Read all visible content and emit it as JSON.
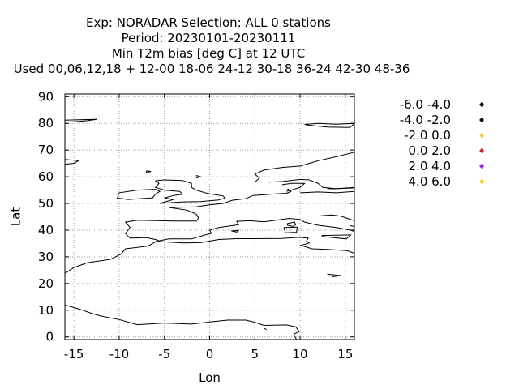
{
  "chart_data": {
    "type": "scatter",
    "title_lines": [
      "Exp: NORADAR   Selection: ALL      0 stations",
      "Period: 20230101-20230111",
      "Min T2m bias [deg C] at  12 UTC",
      "Used  00,06,12,18  + 12-00 18-06 24-12 30-18 36-24 42-30 48-36"
    ],
    "xlabel": "Lon",
    "ylabel": "Lat",
    "xlim": [
      -16,
      16
    ],
    "ylim": [
      -1,
      91
    ],
    "xticks": [
      -15,
      -10,
      -5,
      0,
      5,
      10,
      15
    ],
    "yticks": [
      0,
      10,
      20,
      30,
      40,
      50,
      60,
      70,
      80,
      90
    ],
    "grid": true,
    "legend_position": "right",
    "legend": [
      {
        "label": "-6.0 -4.0",
        "color": "#000000"
      },
      {
        "label": "-4.0 -2.0",
        "color": "#000000"
      },
      {
        "label": "-2.0 0.0",
        "color": "#f0c830"
      },
      {
        "label": "0.0 2.0",
        "color": "#d02020"
      },
      {
        "label": "2.0 4.0",
        "color": "#8a2be2"
      },
      {
        "label": "4.0 6.0",
        "color": "#f0d020"
      }
    ],
    "points": []
  }
}
